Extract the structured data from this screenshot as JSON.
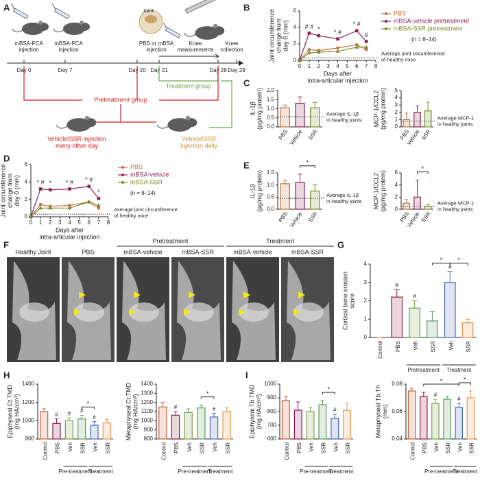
{
  "panels": [
    "A",
    "B",
    "C",
    "D",
    "E",
    "F",
    "G",
    "H",
    "I"
  ],
  "diagram": {
    "days": [
      "Day 0",
      "Day 7",
      "Day 20",
      "Day 21",
      "Day 28",
      "Day 29"
    ],
    "steps": [
      [
        "mBSA-FCA",
        "injection"
      ],
      [
        "mBSA-FCA",
        "injection"
      ],
      [
        "PBS or mBSA",
        "injection"
      ],
      [
        "Knee",
        "measurements"
      ],
      [
        "Knee",
        "collection"
      ]
    ],
    "joint": "Joint",
    "treatment_group": "Treatment group",
    "pretreatment_group": "Pretreatment group",
    "pretreatment_regimen": [
      "Vehicle/SSR injection",
      "every other day"
    ],
    "treatment_regimen": [
      "Vehicle/SSR",
      "injection daily"
    ]
  },
  "images": {
    "groups": [
      "Pretreatment",
      "Treatment"
    ],
    "labels": [
      "Healthy Joint",
      "PBS",
      "mBSA-vehicle",
      "mBSA-SSR",
      "mBSA-vehicle",
      "mBSA-SSR"
    ]
  },
  "chart_data": [
    {
      "type": "line",
      "ylabel": [
        "Joint circumference",
        "change from",
        "day 0 (mm)"
      ],
      "xlabel": [
        "Days after",
        "intra-articular injection"
      ],
      "x": [
        0,
        1,
        2,
        4,
        6,
        7
      ],
      "xlim": [
        0,
        8
      ],
      "xticks": [
        0,
        1,
        2,
        3,
        4,
        5,
        6,
        7,
        8
      ],
      "ylim": [
        0,
        6
      ],
      "yticks": [
        0,
        2,
        4,
        6
      ],
      "series": [
        {
          "name": "PBS",
          "color": "#c0703a",
          "values": [
            0,
            1.3,
            1.2,
            1.5,
            1.9,
            1.3
          ]
        },
        {
          "name": "mBSA-vehicle pretreatment",
          "color": "#8b2252",
          "values": [
            0,
            3.3,
            3.0,
            2.6,
            3.6,
            2.3
          ]
        },
        {
          "name": "mBSA-SSR pretreatment",
          "color": "#7a8a2a",
          "values": [
            0,
            0.9,
            1.0,
            1.1,
            1.6,
            1.6
          ]
        }
      ],
      "significance": [
        null,
        "# #",
        "*",
        "* #",
        "* #",
        "#"
      ],
      "note": "(n = 8–14)",
      "reference_value": 0.3,
      "reference_label": [
        "Average joint circumference",
        "of healthy mice"
      ]
    },
    {
      "type": "bar",
      "ylabel": [
        "IL-1β",
        "(pg/mg protein)"
      ],
      "categories": [
        "PBS",
        "Vehicle",
        "SSR"
      ],
      "values": [
        1.05,
        1.3,
        1.05
      ],
      "errors": [
        0.15,
        0.35,
        0.3
      ],
      "colors": [
        "#c0703a",
        "#8b2252",
        "#7a8a2a"
      ],
      "ylim": [
        0,
        2
      ],
      "yticks": [
        {
          "value": 0,
          "label": "0.0"
        },
        0.5,
        {
          "value": 1,
          "label": "1.0"
        },
        1.5,
        {
          "value": 2,
          "label": "2.0"
        }
      ],
      "reference_value": 0.55,
      "reference_label": [
        "Average IL-1β",
        "in healthy joints"
      ]
    },
    {
      "type": "bar",
      "ylabel": [
        "MCP-1/CCL2",
        "(pg/mg protein)"
      ],
      "categories": [
        "PBS",
        "Vehicle",
        "SSR"
      ],
      "values": [
        1.0,
        2.0,
        2.2
      ],
      "errors": [
        0.9,
        0.9,
        1.2
      ],
      "colors": [
        "#c0703a",
        "#8b2252",
        "#7a8a2a"
      ],
      "ylim": [
        0,
        5
      ],
      "yticks": [
        0,
        1,
        2,
        3,
        4,
        5
      ],
      "reference_value": 0.8,
      "reference_label": [
        "Average MCP-1",
        "in healthy joints"
      ]
    },
    {
      "type": "line",
      "ylabel": [
        "Joint circumference",
        "change from",
        "day 0 (mm)"
      ],
      "xlabel": [
        "Days after",
        "intra-articular injection"
      ],
      "x": [
        0,
        1,
        2,
        4,
        6,
        7
      ],
      "xlim": [
        0,
        8
      ],
      "xticks": [
        0,
        1,
        2,
        3,
        4,
        5,
        6,
        7,
        8
      ],
      "ylim": [
        0,
        6
      ],
      "yticks": [
        0,
        2,
        4,
        6
      ],
      "series": [
        {
          "name": "PBS",
          "color": "#c0703a",
          "values": [
            0,
            1.4,
            1.2,
            1.3,
            1.7,
            1.0
          ]
        },
        {
          "name": "mBSA-vehicle",
          "color": "#8b2252",
          "values": [
            0,
            3.2,
            3.1,
            3.2,
            3.5,
            2.1
          ]
        },
        {
          "name": "mBSA-SSR",
          "color": "#7a8a2a",
          "values": [
            0,
            1.0,
            1.0,
            1.0,
            1.7,
            1.3
          ]
        }
      ],
      "significance": [
        null,
        "* #",
        "*",
        "* #",
        "* #",
        "*"
      ],
      "note": "(n = 8–14)",
      "reference_value": 0.3,
      "reference_label": [
        "Average joint circumference",
        "of healthy mice"
      ]
    },
    {
      "type": "bar",
      "ylabel": [
        "IL-1β",
        "(pg/mg protein)"
      ],
      "categories": [
        "PBS",
        "Vehicle",
        "SSR"
      ],
      "values": [
        1.05,
        1.1,
        0.75
      ],
      "errors": [
        0.15,
        0.35,
        0.25
      ],
      "colors": [
        "#c0703a",
        "#8b2252",
        "#7a8a2a"
      ],
      "ylim": [
        0,
        1.5
      ],
      "yticks": [
        {
          "value": 0,
          "label": "0.0"
        },
        0.5,
        {
          "value": 1,
          "label": "1.0"
        },
        1.5
      ],
      "reference_value": 0.45,
      "reference_label": [
        "Average IL-1β",
        "in healthy joints"
      ],
      "brackets": [
        "*"
      ]
    },
    {
      "type": "bar",
      "ylabel": [
        "MCP-1/CCL2",
        "(pg/mg protein)"
      ],
      "categories": [
        "PBS",
        "Vehicle",
        "SSR"
      ],
      "values": [
        1.0,
        2.0,
        0.5
      ],
      "errors": [
        0.6,
        2.8,
        0.3
      ],
      "colors": [
        "#c0703a",
        "#8b2252",
        "#7a8a2a"
      ],
      "ylim": [
        0,
        6
      ],
      "yticks": [
        0,
        2,
        4,
        6
      ],
      "reference_value": 0.5,
      "reference_label": [
        "Average MCP-1",
        "in healthy joints"
      ],
      "brackets": [
        "*"
      ]
    },
    {
      "type": "bar",
      "ylabel": [
        "Cortical bone erosion",
        "score"
      ],
      "categories": [
        "Control",
        "PBS",
        "Veh",
        "SSR",
        "Veh",
        "SSR"
      ],
      "values": [
        0,
        2.2,
        1.6,
        0.9,
        3.0,
        0.8
      ],
      "errors": [
        0,
        0.4,
        0.4,
        0.5,
        0.6,
        0.2
      ],
      "markers": [
        null,
        "#",
        "#",
        null,
        "#",
        null
      ],
      "colors": [
        "#e0803a",
        "#8b1a3a",
        "#7aa04a",
        "#5a9a6a",
        "#4a6ab0",
        "#e5904a"
      ],
      "ylim": [
        0,
        4
      ],
      "yticks": [
        0,
        1,
        2,
        3,
        4
      ],
      "groups": [
        "Pretreatment",
        "Treatment"
      ],
      "brackets": [
        "*",
        "*"
      ]
    },
    {
      "type": "bar",
      "ylabel": [
        "Epiphyseal Ct.TMD",
        "(mg HA/cm³)"
      ],
      "categories": [
        "Control",
        "PBS",
        "Veh",
        "SSR",
        "Veh",
        "SSR"
      ],
      "values": [
        1100,
        970,
        1000,
        1020,
        950,
        975
      ],
      "errors": [
        30,
        50,
        30,
        40,
        40,
        40
      ],
      "markers": [
        null,
        "#",
        "#",
        "#",
        "#",
        null
      ],
      "colors": [
        "#c0603a",
        "#8b1a4a",
        "#7aa04a",
        "#5a9a5a",
        "#4a6ab0",
        "#e59a50"
      ],
      "ylim": [
        800,
        1400
      ],
      "yticks": [
        800,
        1000,
        1200,
        1400
      ],
      "groups": [
        "Pre-treatment",
        "Treatment"
      ],
      "brackets": [
        "*"
      ]
    },
    {
      "type": "bar",
      "ylabel": [
        "Metaphyseal Ct.TMD",
        "(mg HA/cm³)"
      ],
      "categories": [
        "Control",
        "PBS",
        "Veh",
        "SSR",
        "Veh",
        "SSR"
      ],
      "values": [
        1150,
        1060,
        1090,
        1140,
        1040,
        1100
      ],
      "errors": [
        50,
        40,
        40,
        30,
        40,
        40
      ],
      "markers": [
        null,
        "#",
        null,
        null,
        "#",
        null
      ],
      "colors": [
        "#c0603a",
        "#8b1a4a",
        "#7aa04a",
        "#5a9a5a",
        "#4a6ab0",
        "#e59a50"
      ],
      "ylim": [
        800,
        1400
      ],
      "yticks": [
        800,
        900,
        1000,
        1100,
        1200,
        1300,
        1400
      ],
      "groups": [
        "Pre-treatment",
        "Treatment"
      ],
      "brackets": [
        "*"
      ]
    },
    {
      "type": "bar",
      "ylabel": [
        "Epiphyseal Tb.TMD",
        "(mg HA/cm³)"
      ],
      "categories": [
        "Control",
        "PBS",
        "Veh",
        "SSR",
        "Veh",
        "SSR"
      ],
      "values": [
        880,
        810,
        800,
        850,
        750,
        810
      ],
      "errors": [
        30,
        60,
        30,
        30,
        30,
        50
      ],
      "markers": [
        null,
        null,
        null,
        null,
        "#",
        null
      ],
      "colors": [
        "#c0603a",
        "#8b1a4a",
        "#7aa04a",
        "#5a9a5a",
        "#4a6ab0",
        "#e59a50"
      ],
      "ylim": [
        600,
        1000
      ],
      "yticks": [
        600,
        700,
        800,
        900,
        1000
      ],
      "groups": [
        "Pre-treatment",
        "Treatment"
      ],
      "brackets": [
        "*"
      ]
    },
    {
      "type": "bar",
      "ylabel": [
        "Metaphyseal Tb.Th",
        "(mm)"
      ],
      "categories": [
        "Control",
        "PBS",
        "Veh",
        "SSR",
        "Veh",
        "SSR"
      ],
      "values": [
        0.075,
        0.071,
        0.066,
        0.069,
        0.063,
        0.07
      ],
      "errors": [
        0.002,
        0.003,
        0.003,
        0.002,
        0.003,
        0.005
      ],
      "markers": [
        null,
        null,
        "#",
        null,
        "#",
        null
      ],
      "colors": [
        "#c0603a",
        "#8b1a4a",
        "#7aa04a",
        "#5a9a5a",
        "#4a6ab0",
        "#e59a50"
      ],
      "ylim": [
        0.04,
        0.08
      ],
      "yticks": [
        0.04,
        0.06,
        0.08
      ],
      "groups": [
        "Pre-treatment",
        "Treatment"
      ],
      "brackets": [
        "*",
        "*"
      ]
    }
  ]
}
